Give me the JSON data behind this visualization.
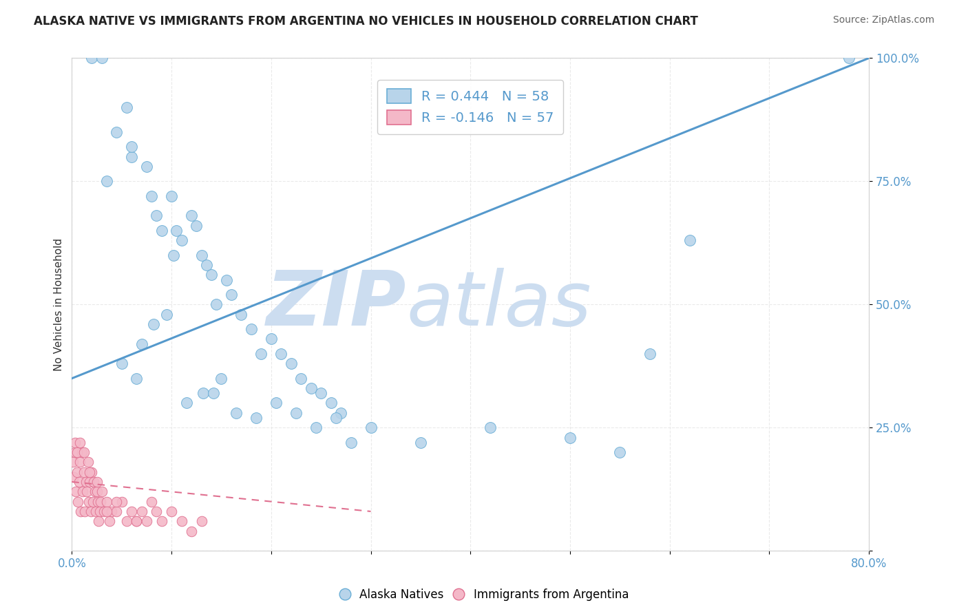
{
  "title": "ALASKA NATIVE VS IMMIGRANTS FROM ARGENTINA NO VEHICLES IN HOUSEHOLD CORRELATION CHART",
  "source": "Source: ZipAtlas.com",
  "ylabel": "No Vehicles in Household",
  "xlim": [
    0.0,
    80.0
  ],
  "ylim": [
    0.0,
    100.0
  ],
  "x_tick_positions": [
    0.0,
    10.0,
    20.0,
    30.0,
    40.0,
    50.0,
    60.0,
    70.0,
    80.0
  ],
  "x_tick_labels": [
    "0.0%",
    "",
    "",
    "",
    "",
    "",
    "",
    "",
    "80.0%"
  ],
  "y_tick_positions": [
    0.0,
    25.0,
    50.0,
    75.0,
    100.0
  ],
  "y_tick_labels": [
    "",
    "25.0%",
    "50.0%",
    "75.0%",
    "100.0%"
  ],
  "alaska_R": 0.444,
  "alaska_N": 58,
  "argentina_R": -0.146,
  "argentina_N": 57,
  "alaska_color": "#b8d4ea",
  "alaska_edge_color": "#6aaed6",
  "alaska_line_color": "#5599cc",
  "argentina_color": "#f4b8c8",
  "argentina_edge_color": "#e07090",
  "argentina_line_color": "#e07090",
  "watermark_zip": "ZIP",
  "watermark_atlas": "atlas",
  "watermark_color": "#ccddf0",
  "background_color": "#ffffff",
  "grid_color": "#e8e8e8",
  "tick_color": "#5599cc",
  "alaska_x": [
    2.0,
    3.0,
    5.5,
    6.0,
    7.5,
    8.0,
    8.5,
    9.0,
    10.0,
    10.5,
    11.0,
    12.0,
    12.5,
    13.0,
    13.5,
    14.0,
    14.5,
    15.5,
    16.0,
    17.0,
    18.0,
    19.0,
    20.0,
    21.0,
    22.0,
    23.0,
    24.0,
    25.0,
    26.0,
    27.0,
    35.0,
    42.0,
    50.0,
    62.0,
    78.0,
    5.0,
    6.5,
    7.0,
    8.2,
    9.5,
    10.2,
    11.5,
    13.2,
    14.2,
    15.0,
    16.5,
    18.5,
    20.5,
    22.5,
    24.5,
    26.5,
    28.0,
    30.0,
    55.0,
    58.0,
    3.5,
    4.5,
    6.0
  ],
  "alaska_y": [
    100.0,
    100.0,
    90.0,
    80.0,
    78.0,
    72.0,
    68.0,
    65.0,
    72.0,
    65.0,
    63.0,
    68.0,
    66.0,
    60.0,
    58.0,
    56.0,
    50.0,
    55.0,
    52.0,
    48.0,
    45.0,
    40.0,
    43.0,
    40.0,
    38.0,
    35.0,
    33.0,
    32.0,
    30.0,
    28.0,
    22.0,
    25.0,
    23.0,
    63.0,
    100.0,
    38.0,
    35.0,
    42.0,
    46.0,
    48.0,
    60.0,
    30.0,
    32.0,
    32.0,
    35.0,
    28.0,
    27.0,
    30.0,
    28.0,
    25.0,
    27.0,
    22.0,
    25.0,
    20.0,
    40.0,
    75.0,
    85.0,
    82.0
  ],
  "argentina_x": [
    0.1,
    0.2,
    0.3,
    0.4,
    0.5,
    0.6,
    0.7,
    0.8,
    0.9,
    1.0,
    1.1,
    1.2,
    1.3,
    1.4,
    1.5,
    1.6,
    1.7,
    1.8,
    1.9,
    2.0,
    2.1,
    2.2,
    2.3,
    2.4,
    2.5,
    2.6,
    2.7,
    2.8,
    2.9,
    3.0,
    3.2,
    3.5,
    3.8,
    4.0,
    4.5,
    5.0,
    5.5,
    6.0,
    6.5,
    7.0,
    7.5,
    8.0,
    9.0,
    10.0,
    11.0,
    12.0,
    13.0,
    0.3,
    0.5,
    0.8,
    1.2,
    1.8,
    2.5,
    3.5,
    4.5,
    6.5,
    8.5
  ],
  "argentina_y": [
    18.0,
    15.0,
    20.0,
    12.0,
    16.0,
    10.0,
    14.0,
    18.0,
    8.0,
    20.0,
    12.0,
    16.0,
    8.0,
    14.0,
    12.0,
    18.0,
    10.0,
    14.0,
    8.0,
    16.0,
    10.0,
    14.0,
    12.0,
    8.0,
    12.0,
    10.0,
    6.0,
    8.0,
    10.0,
    12.0,
    8.0,
    10.0,
    6.0,
    8.0,
    8.0,
    10.0,
    6.0,
    8.0,
    6.0,
    8.0,
    6.0,
    10.0,
    6.0,
    8.0,
    6.0,
    4.0,
    6.0,
    22.0,
    20.0,
    22.0,
    20.0,
    16.0,
    14.0,
    8.0,
    10.0,
    6.0,
    8.0
  ],
  "alaska_trend_x0": 0.0,
  "alaska_trend_y0": 35.0,
  "alaska_trend_x1": 80.0,
  "alaska_trend_y1": 100.0,
  "argentina_trend_x0": 0.0,
  "argentina_trend_y0": 14.0,
  "argentina_trend_x1": 30.0,
  "argentina_trend_y1": 8.0
}
